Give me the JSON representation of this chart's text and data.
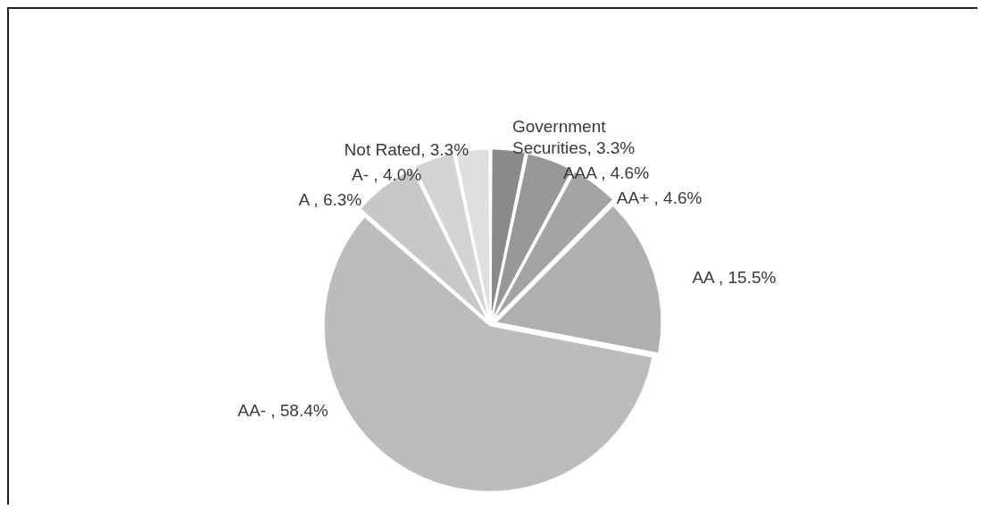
{
  "chart_data": {
    "type": "pie",
    "categories": [
      "Government Securities",
      "AAA ",
      "AA+ ",
      "AA ",
      "AA- ",
      "A ",
      "A- ",
      "Not Rated"
    ],
    "values": [
      3.3,
      4.6,
      4.6,
      15.5,
      58.4,
      6.3,
      4.0,
      3.3
    ],
    "value_labels": [
      "3.3%",
      "4.6%",
      "4.6%",
      "15.5%",
      "58.4%",
      "6.3%",
      "4.0%",
      "3.3%"
    ],
    "colors": [
      "#8a8a8a",
      "#989898",
      "#a4a4a4",
      "#afafaf",
      "#bcbcbc",
      "#c8c8c8",
      "#d4d4d4",
      "#dfdfdf"
    ],
    "data_labels": true,
    "legend": false
  }
}
